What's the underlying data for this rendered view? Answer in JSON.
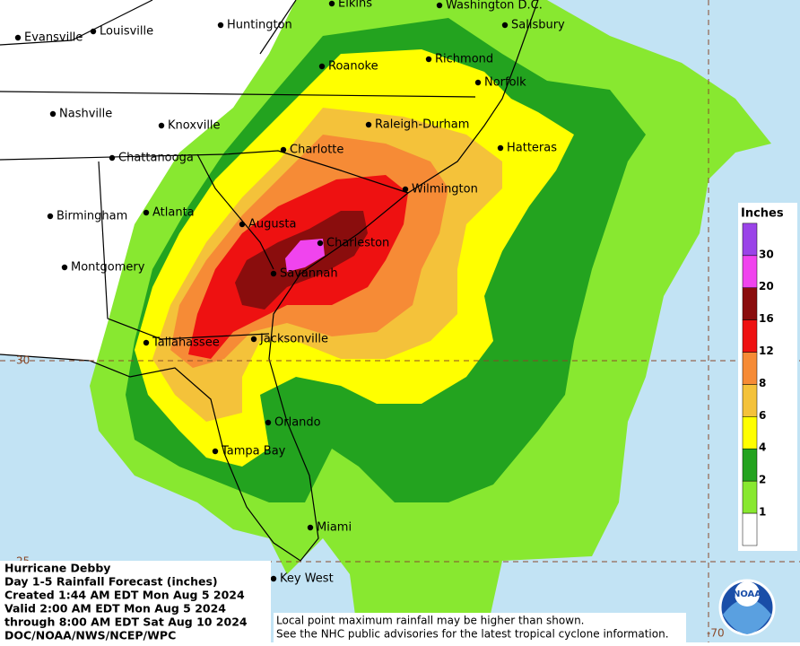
{
  "map": {
    "cities": [
      "Elkins",
      "Washington D.C.",
      "Salisbury",
      "Evansville",
      "Louisville",
      "Huntington",
      "Roanoke",
      "Richmond",
      "Norfolk",
      "Nashville",
      "Knoxville",
      "Raleigh-Durham",
      "Hatteras",
      "Chattanooga",
      "Charlotte",
      "Wilmington",
      "Birmingham",
      "Atlanta",
      "Augusta",
      "Charleston",
      "Montgomery",
      "Savannah",
      "Tallahassee",
      "Jacksonville",
      "Orlando",
      "Tampa Bay",
      "Miami",
      "Key West"
    ],
    "latitudes": [
      30,
      25
    ],
    "longitudes": [
      -70
    ],
    "legend": {
      "title": "Inches",
      "levels": [
        {
          "value": 1,
          "color": "#88e830"
        },
        {
          "value": 2,
          "color": "#23a31f"
        },
        {
          "value": 4,
          "color": "#ffff00"
        },
        {
          "value": 6,
          "color": "#f4c23a"
        },
        {
          "value": 8,
          "color": "#f68b36"
        },
        {
          "value": 12,
          "color": "#ee1111"
        },
        {
          "value": 16,
          "color": "#8a0d0d"
        },
        {
          "value": 20,
          "color": "#f044ee"
        },
        {
          "value": 30,
          "color": "#9a44e8"
        }
      ]
    },
    "info": [
      "Hurricane Debby",
      "Day 1-5 Rainfall Forecast (inches)",
      "Created 1:44 AM EDT Mon Aug 5 2024",
      "Valid 2:00 AM EDT Mon Aug 5 2024",
      "through 8:00 AM EDT Sat Aug 10 2024",
      "DOC/NOAA/NWS/NCEP/WPC"
    ],
    "notes": [
      "Local point maximum rainfall may be higher than shown.",
      "See the NHC public advisories for the latest tropical cyclone information."
    ],
    "logo": "NOAA"
  }
}
